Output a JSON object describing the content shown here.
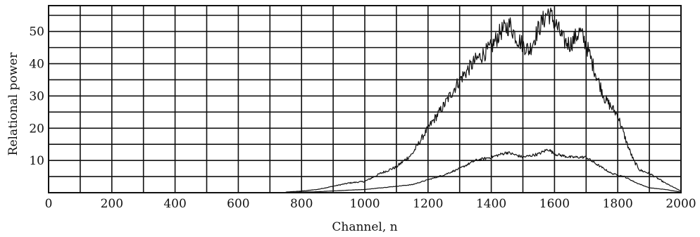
{
  "chart_data": {
    "type": "line",
    "title": "",
    "xlabel": "Channel, n",
    "ylabel": "Relational power",
    "xlim": [
      0,
      2000
    ],
    "ylim": [
      0,
      58
    ],
    "x_ticks": [
      0,
      200,
      400,
      600,
      800,
      1000,
      1200,
      1400,
      1600,
      1800,
      2000
    ],
    "y_ticks": [
      10,
      20,
      30,
      40,
      50
    ],
    "grid": true,
    "x_grid_step": 100,
    "y_grid_step": 5,
    "series": [
      {
        "x": [
          750,
          800,
          850,
          900,
          950,
          1000,
          1050,
          1100,
          1150,
          1200,
          1250,
          1300,
          1350,
          1400,
          1430,
          1460,
          1480,
          1500,
          1520,
          1550,
          1580,
          1600,
          1630,
          1650,
          1680,
          1700,
          1730,
          1760,
          1800,
          1830,
          1850,
          1870,
          1900,
          1950,
          2000
        ],
        "values": [
          0.2,
          0.5,
          1,
          2,
          3,
          3.5,
          6,
          8,
          12,
          20,
          27,
          35,
          41,
          45,
          50,
          52,
          48,
          46,
          44,
          51,
          56,
          53,
          47,
          46,
          50,
          46,
          37,
          29,
          24,
          15,
          10,
          7,
          6,
          3,
          0.5
        ]
      },
      {
        "x": [
          750,
          850,
          950,
          1000,
          1050,
          1100,
          1150,
          1200,
          1250,
          1300,
          1350,
          1400,
          1450,
          1500,
          1550,
          1580,
          1600,
          1650,
          1700,
          1730,
          1780,
          1820,
          1860,
          1900,
          1950,
          2000
        ],
        "values": [
          0.1,
          0.3,
          0.8,
          1,
          1.5,
          2,
          2.5,
          4,
          5.5,
          7.5,
          10,
          11,
          12.5,
          11,
          12,
          13.5,
          12,
          11,
          11,
          9,
          6,
          5,
          3,
          1.5,
          1,
          0.2
        ]
      }
    ]
  }
}
